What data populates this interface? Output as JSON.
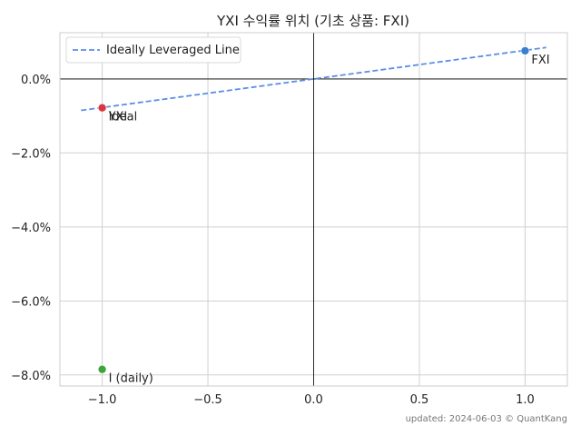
{
  "chart_data": {
    "type": "scatter",
    "title": "YXI 수익률 위치 (기초 상품: FXI)",
    "xlabel": "",
    "ylabel": "",
    "xlim": [
      -1.2,
      1.2
    ],
    "ylim": [
      -8.3,
      1.25
    ],
    "x_ticks": [
      -1.0,
      -0.5,
      0.0,
      0.5,
      1.0
    ],
    "x_tick_labels": [
      "−1.0",
      "−0.5",
      "0.0",
      "0.5",
      "1.0"
    ],
    "y_ticks": [
      0,
      -2,
      -4,
      -6,
      -8
    ],
    "y_tick_labels": [
      "0.0%",
      "−2.0%",
      "−4.0%",
      "−6.0%",
      "−8.0%"
    ],
    "grid": true,
    "legend_position": "top-left",
    "reference_line": {
      "name": "Ideally Leveraged Line",
      "x": [
        -1.1,
        1.1
      ],
      "y": [
        -0.85,
        0.85
      ],
      "color": "#5b8ee6",
      "style": "dashed"
    },
    "points": [
      {
        "label": "FXI",
        "x": 1.0,
        "y": 0.76,
        "color": "#3a7ecf"
      },
      {
        "label": "Ideal",
        "x": -1.0,
        "y": -0.78,
        "color": "#f08080"
      },
      {
        "label": "YXI",
        "x": -1.0,
        "y": -0.78,
        "color": "#d9363e"
      },
      {
        "label": "I (daily)",
        "x": -1.0,
        "y": -7.85,
        "color": "#3aa53a"
      }
    ]
  },
  "footer": "updated: 2024-06-03 © QuantKang"
}
